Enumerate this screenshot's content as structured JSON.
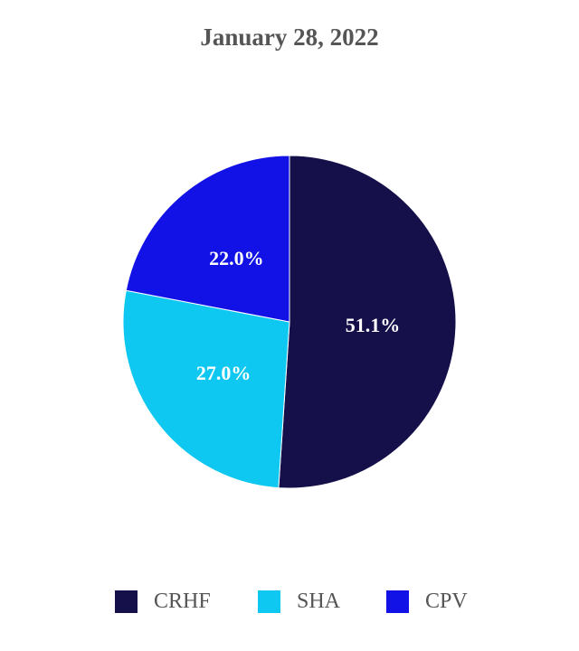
{
  "chart_data": {
    "type": "pie",
    "title": "January 28, 2022",
    "categories": [
      "CRHF",
      "SHA",
      "CPV"
    ],
    "values": [
      51.1,
      27.0,
      22.0
    ],
    "labels": [
      "51.1%",
      "27.0%",
      "22.0%"
    ],
    "colors": [
      "#150f4a",
      "#0fc8f2",
      "#1212e6"
    ],
    "start_angle": "top, clockwise",
    "legend": "bottom"
  }
}
